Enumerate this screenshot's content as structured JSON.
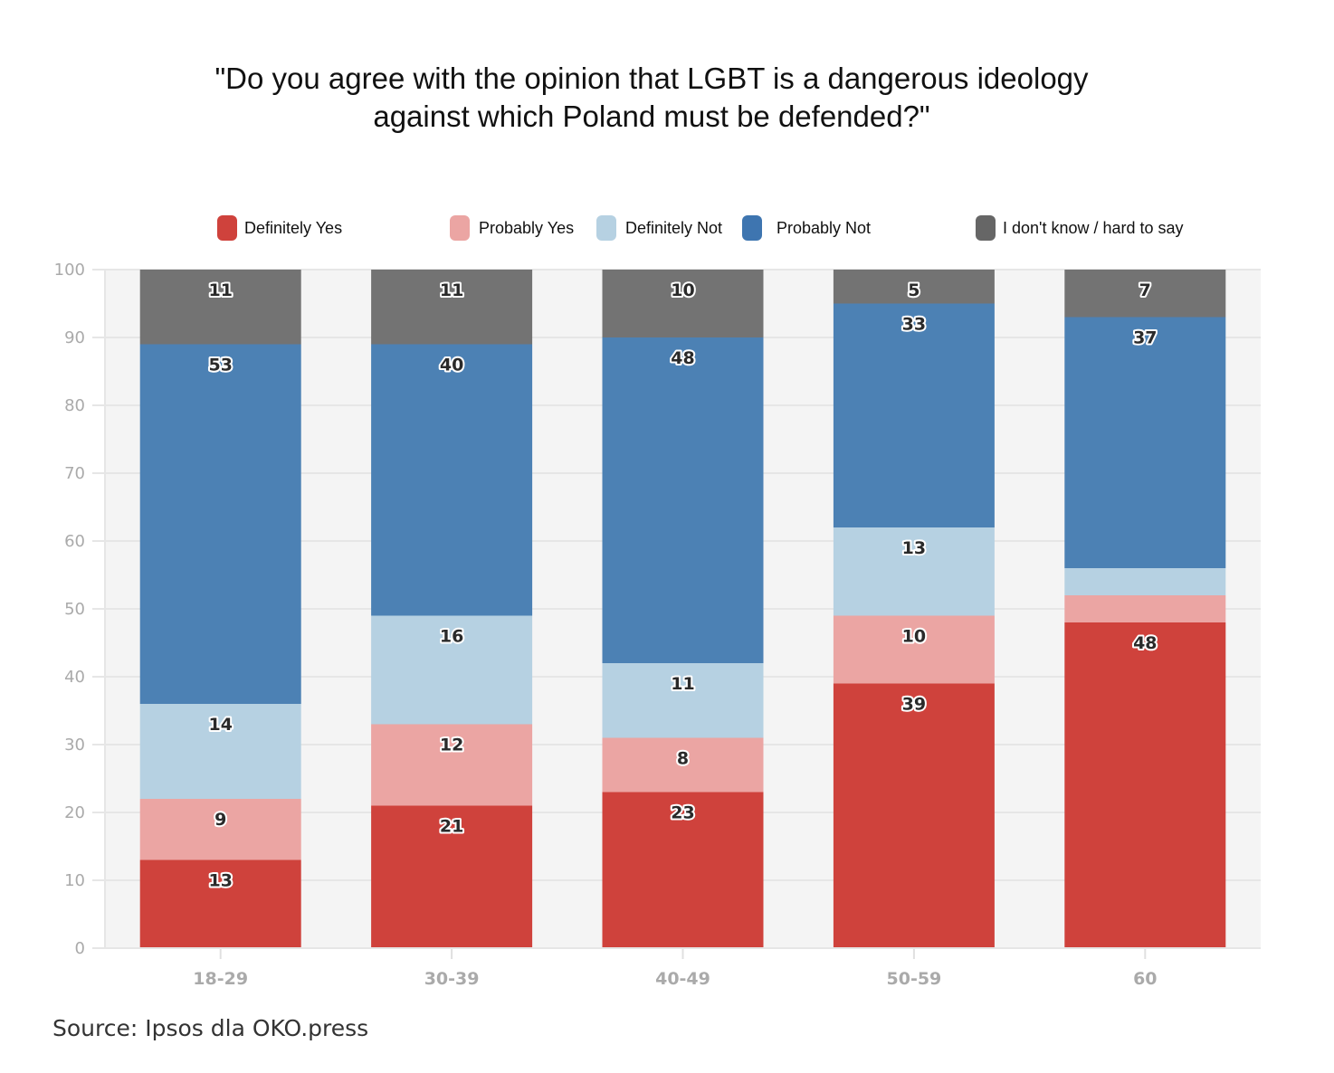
{
  "chart_data": {
    "type": "bar",
    "stacked": true,
    "title": "\"Do you agree with the opinion that LGBT is a dangerous ideology against which Poland must be defended?\"",
    "title_lines": [
      "\"Do you agree with the opinion that LGBT is a dangerous ideology",
      "against which Poland must be defended?\""
    ],
    "xlabel": "",
    "ylabel": "",
    "ylim": [
      0,
      100
    ],
    "yticks": [
      0,
      10,
      20,
      30,
      40,
      50,
      60,
      70,
      80,
      90,
      100
    ],
    "grid": true,
    "legend_position": "top",
    "categories": [
      "18-29",
      "30-39",
      "40-49",
      "50-59",
      "60"
    ],
    "series": [
      {
        "name": "Definitely Yes",
        "color": "#cf423c",
        "values": [
          13,
          21,
          23,
          39,
          48
        ],
        "labels": [
          "13",
          "21",
          "23",
          "39",
          "48"
        ]
      },
      {
        "name": "Probably Yes",
        "color": "#eba5a3",
        "values": [
          9,
          12,
          8,
          10,
          4
        ],
        "labels": [
          "9",
          "12",
          "8",
          "10",
          ""
        ]
      },
      {
        "name": "Definitely Not",
        "color": "#b6d1e2",
        "values": [
          14,
          16,
          11,
          13,
          4
        ],
        "labels": [
          "14",
          "16",
          "11",
          "13",
          ""
        ]
      },
      {
        "name": "Probably Not",
        "color": "#4c81b4",
        "values": [
          53,
          40,
          48,
          33,
          37
        ],
        "labels": [
          "53",
          "40",
          "48",
          "33",
          "37"
        ]
      },
      {
        "name": "I don't know / hard to say",
        "color": "#737373",
        "values": [
          11,
          11,
          10,
          5,
          7
        ],
        "labels": [
          "11",
          "11",
          "10",
          "5",
          "7"
        ]
      }
    ],
    "legend_colors": [
      "#cf423c",
      "#eba5a3",
      "#b6d1e2",
      "#3e75b0",
      "#666666"
    ],
    "source": "Source: Ipsos dla OKO.press"
  }
}
